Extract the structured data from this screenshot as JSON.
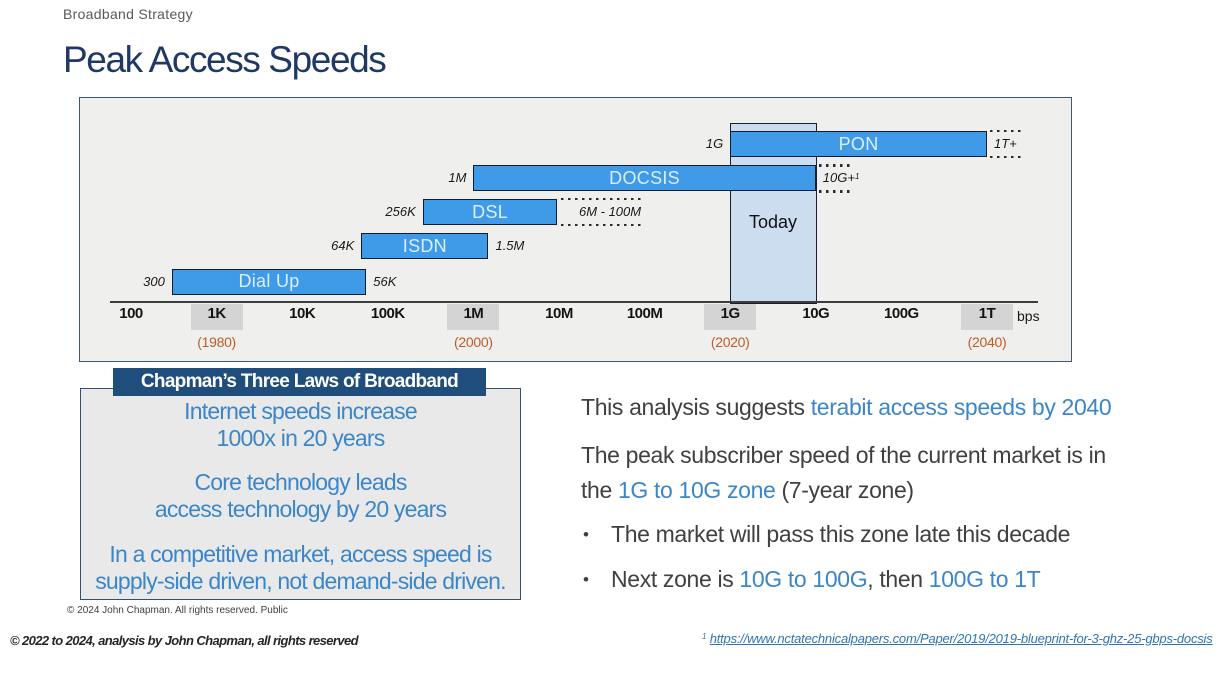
{
  "header": {
    "eyebrow": "Broadband Strategy",
    "title": "Peak Access Speeds"
  },
  "chart_data": {
    "type": "bar",
    "orientation": "horizontal-range",
    "xscale": "log",
    "x_unit_label": "bps",
    "x_ticks": [
      {
        "label": "100",
        "bps": 100,
        "highlighted": false,
        "year": ""
      },
      {
        "label": "1K",
        "bps": 1000,
        "highlighted": true,
        "year": "(1980)"
      },
      {
        "label": "10K",
        "bps": 10000,
        "highlighted": false,
        "year": ""
      },
      {
        "label": "100K",
        "bps": 100000,
        "highlighted": false,
        "year": ""
      },
      {
        "label": "1M",
        "bps": 1000000,
        "highlighted": true,
        "year": "(2000)"
      },
      {
        "label": "10M",
        "bps": 10000000,
        "highlighted": false,
        "year": ""
      },
      {
        "label": "100M",
        "bps": 100000000,
        "highlighted": false,
        "year": ""
      },
      {
        "label": "1G",
        "bps": 1000000000,
        "highlighted": true,
        "year": "(2020)"
      },
      {
        "label": "10G",
        "bps": 10000000000,
        "highlighted": false,
        "year": ""
      },
      {
        "label": "100G",
        "bps": 100000000000,
        "highlighted": false,
        "year": ""
      },
      {
        "label": "1T",
        "bps": 1000000000000,
        "highlighted": true,
        "year": "(2040)"
      }
    ],
    "series": [
      {
        "name": "PON",
        "start_bps": 1000000000.0,
        "end_bps": 1000000000000.0,
        "start_label": "1G",
        "dotted": {
          "label": "1T+",
          "sup": ""
        }
      },
      {
        "name": "DOCSIS",
        "start_bps": 1000000.0,
        "end_bps": 10000000000.0,
        "start_label": "1M",
        "dotted": {
          "label": "10G+",
          "sup": "1"
        }
      },
      {
        "name": "DSL",
        "start_bps": 256000.0,
        "end_bps": 6000000.0,
        "start_label": "256K",
        "dotted": {
          "label": "6M - 100M",
          "sup": ""
        }
      },
      {
        "name": "ISDN",
        "start_bps": 64000.0,
        "end_bps": 1500000.0,
        "start_label": "64K",
        "end_label": "1.5M"
      },
      {
        "name": "Dial Up",
        "start_bps": 300,
        "end_bps": 56000.0,
        "start_label": "300",
        "end_label": "56K"
      }
    ],
    "today_zone": {
      "label": "Today",
      "from_bps": 1000000000.0,
      "to_bps": 10000000000.0
    }
  },
  "chapman": {
    "title": "Chapman’s Three Laws of Broadband",
    "laws": [
      [
        "Internet speeds increase",
        "1000x in 20 years"
      ],
      [
        "Core technology leads",
        "access technology by 20 years"
      ],
      [
        "In a competitive market, access speed is",
        "supply-side driven, not demand-side driven."
      ]
    ],
    "note": "© 2024  John Chapman. All rights reserved. Public"
  },
  "analysis": {
    "p1": [
      {
        "t": "This analysis suggests ",
        "c": "dark"
      },
      {
        "t": "terabit access speeds by 2040",
        "c": "blue"
      }
    ],
    "p2_line1": [
      {
        "t": "The peak subscriber speed of the current market is in",
        "c": "dark"
      }
    ],
    "p2_line2": [
      {
        "t": "the ",
        "c": "dark"
      },
      {
        "t": "1G to 10G zone",
        "c": "blue"
      },
      {
        "t": " (7-year zone)",
        "c": "dark"
      }
    ],
    "bullet_char": "•",
    "b1": [
      {
        "t": "The market will pass this zone late this decade",
        "c": "dark"
      }
    ],
    "b2": [
      {
        "t": "Next zone is ",
        "c": "dark"
      },
      {
        "t": "10G to 100G",
        "c": "blue"
      },
      {
        "t": ", then ",
        "c": "dark"
      },
      {
        "t": "100G to 1T",
        "c": "blue"
      }
    ]
  },
  "footer": {
    "left": "© 2022 to 2024, analysis by John Chapman, all rights reserved",
    "footnote_marker": "1",
    "footnote_url": "https://www.nctatechnicalpapers.com/Paper/2019/2019-blueprint-for-3-ghz-25-gbps-docsis"
  }
}
